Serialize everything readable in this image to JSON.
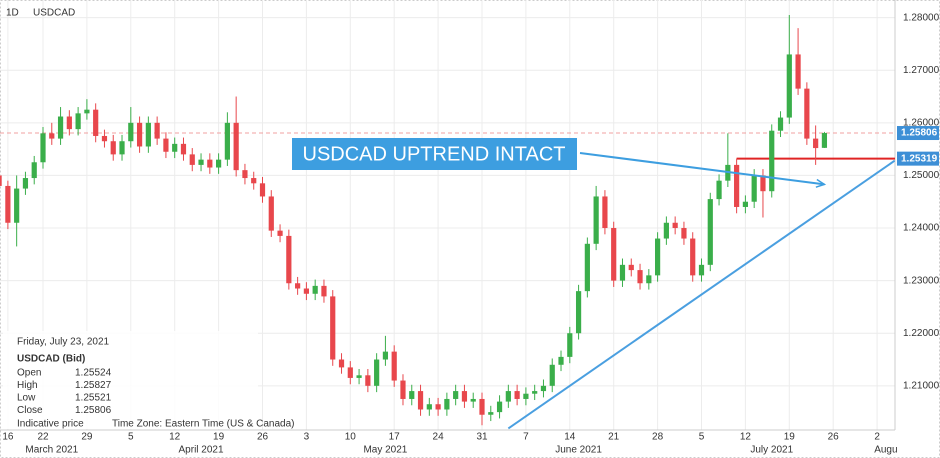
{
  "chart_data": {
    "type": "candlestick",
    "interval": "1D",
    "title": "USDCAD",
    "x": [
      "2021-03-15",
      "2021-03-16",
      "2021-03-17",
      "2021-03-18",
      "2021-03-19",
      "2021-03-22",
      "2021-03-23",
      "2021-03-24",
      "2021-03-25",
      "2021-03-26",
      "2021-03-29",
      "2021-03-30",
      "2021-03-31",
      "2021-04-01",
      "2021-04-02",
      "2021-04-05",
      "2021-04-06",
      "2021-04-07",
      "2021-04-08",
      "2021-04-09",
      "2021-04-12",
      "2021-04-13",
      "2021-04-14",
      "2021-04-15",
      "2021-04-16",
      "2021-04-19",
      "2021-04-20",
      "2021-04-21",
      "2021-04-22",
      "2021-04-23",
      "2021-04-26",
      "2021-04-27",
      "2021-04-28",
      "2021-04-29",
      "2021-04-30",
      "2021-05-03",
      "2021-05-04",
      "2021-05-05",
      "2021-05-06",
      "2021-05-07",
      "2021-05-10",
      "2021-05-11",
      "2021-05-12",
      "2021-05-13",
      "2021-05-14",
      "2021-05-17",
      "2021-05-18",
      "2021-05-19",
      "2021-05-20",
      "2021-05-21",
      "2021-05-24",
      "2021-05-25",
      "2021-05-26",
      "2021-05-27",
      "2021-05-28",
      "2021-05-31",
      "2021-06-01",
      "2021-06-02",
      "2021-06-03",
      "2021-06-04",
      "2021-06-07",
      "2021-06-08",
      "2021-06-09",
      "2021-06-10",
      "2021-06-11",
      "2021-06-14",
      "2021-06-15",
      "2021-06-16",
      "2021-06-17",
      "2021-06-18",
      "2021-06-21",
      "2021-06-22",
      "2021-06-23",
      "2021-06-24",
      "2021-06-25",
      "2021-06-28",
      "2021-06-29",
      "2021-06-30",
      "2021-07-01",
      "2021-07-02",
      "2021-07-05",
      "2021-07-06",
      "2021-07-07",
      "2021-07-08",
      "2021-07-09",
      "2021-07-12",
      "2021-07-13",
      "2021-07-14",
      "2021-07-15",
      "2021-07-16",
      "2021-07-19",
      "2021-07-20",
      "2021-07-21",
      "2021-07-22",
      "2021-07-23"
    ],
    "open": [
      1.25,
      1.248,
      1.241,
      1.2475,
      1.2495,
      1.2525,
      1.258,
      1.257,
      1.2612,
      1.2588,
      1.2618,
      1.2625,
      1.2575,
      1.2565,
      1.254,
      1.2565,
      1.26,
      1.2555,
      1.26,
      1.257,
      1.2545,
      1.256,
      1.254,
      1.252,
      1.253,
      1.2515,
      1.253,
      1.26,
      1.251,
      1.2495,
      1.2485,
      1.246,
      1.2395,
      1.2385,
      1.2295,
      1.2285,
      1.2275,
      1.229,
      1.227,
      1.215,
      1.2135,
      1.2115,
      1.212,
      1.21,
      1.215,
      1.2165,
      1.211,
      1.2075,
      1.209,
      1.2055,
      1.2065,
      1.2055,
      1.2075,
      1.209,
      1.207,
      1.2075,
      1.2045,
      1.205,
      1.207,
      1.209,
      1.2075,
      1.2085,
      1.209,
      1.21,
      1.214,
      1.2155,
      1.22,
      1.228,
      1.237,
      1.246,
      1.24,
      1.23,
      1.233,
      1.232,
      1.2295,
      1.231,
      1.238,
      1.241,
      1.24,
      1.238,
      1.231,
      1.233,
      1.2455,
      1.249,
      1.252,
      1.244,
      1.245,
      1.25,
      1.247,
      1.2585,
      1.261,
      1.273,
      1.2665,
      1.257,
      1.25524
    ],
    "high": [
      1.2512,
      1.249,
      1.25,
      1.2507,
      1.2537,
      1.2592,
      1.26,
      1.263,
      1.2624,
      1.263,
      1.2645,
      1.2637,
      1.2587,
      1.2577,
      1.2577,
      1.263,
      1.2612,
      1.2612,
      1.2612,
      1.2582,
      1.2572,
      1.2572,
      1.2552,
      1.2542,
      1.2542,
      1.2542,
      1.262,
      1.265,
      1.2522,
      1.2507,
      1.2497,
      1.2472,
      1.2407,
      1.2397,
      1.2307,
      1.2297,
      1.2302,
      1.2302,
      1.2282,
      1.2162,
      1.2147,
      1.2132,
      1.2132,
      1.2162,
      1.2195,
      1.2177,
      1.2122,
      1.2102,
      1.2102,
      1.2077,
      1.2077,
      1.2087,
      1.2102,
      1.2102,
      1.2087,
      1.2087,
      1.2062,
      1.2082,
      1.2102,
      1.2102,
      1.2097,
      1.2102,
      1.2112,
      1.2152,
      1.2167,
      1.2212,
      1.2292,
      1.2382,
      1.248,
      1.2472,
      1.2412,
      1.2342,
      1.2342,
      1.2332,
      1.2322,
      1.2392,
      1.2422,
      1.2422,
      1.2412,
      1.2392,
      1.2342,
      1.2467,
      1.2502,
      1.258,
      1.2532,
      1.2462,
      1.2512,
      1.2512,
      1.2597,
      1.2622,
      1.2805,
      1.278,
      1.2677,
      1.2595,
      1.25827
    ],
    "low": [
      1.2468,
      1.2398,
      1.2365,
      1.2463,
      1.2483,
      1.2513,
      1.2558,
      1.2558,
      1.2576,
      1.2576,
      1.2606,
      1.2563,
      1.2553,
      1.2528,
      1.2528,
      1.2553,
      1.2543,
      1.2543,
      1.2558,
      1.2533,
      1.2533,
      1.2528,
      1.2508,
      1.2508,
      1.2503,
      1.2503,
      1.2518,
      1.2498,
      1.2483,
      1.2473,
      1.2448,
      1.2383,
      1.2373,
      1.2283,
      1.2273,
      1.2263,
      1.2263,
      1.2258,
      1.2138,
      1.2123,
      1.2103,
      1.2103,
      1.2088,
      1.2088,
      1.2138,
      1.2098,
      1.2063,
      1.2063,
      1.2043,
      1.2043,
      1.2043,
      1.2043,
      1.2063,
      1.2058,
      1.2058,
      1.2025,
      1.2033,
      1.2038,
      1.2058,
      1.2063,
      1.2063,
      1.2073,
      1.2078,
      1.2088,
      1.2128,
      1.2143,
      1.2188,
      1.2268,
      1.2358,
      1.2388,
      1.2288,
      1.2288,
      1.2308,
      1.2283,
      1.2283,
      1.2298,
      1.2368,
      1.2388,
      1.2368,
      1.2298,
      1.2298,
      1.2318,
      1.2443,
      1.2478,
      1.2428,
      1.2428,
      1.2438,
      1.242,
      1.2458,
      1.2573,
      1.2598,
      1.2653,
      1.2558,
      1.252,
      1.25521
    ],
    "close": [
      1.248,
      1.241,
      1.2475,
      1.2495,
      1.2525,
      1.258,
      1.257,
      1.2612,
      1.2588,
      1.2618,
      1.2625,
      1.2575,
      1.2565,
      1.254,
      1.2565,
      1.26,
      1.2555,
      1.26,
      1.257,
      1.2545,
      1.256,
      1.254,
      1.252,
      1.253,
      1.2515,
      1.253,
      1.26,
      1.251,
      1.2495,
      1.2485,
      1.246,
      1.2395,
      1.2385,
      1.2295,
      1.2285,
      1.2275,
      1.229,
      1.227,
      1.215,
      1.2135,
      1.2115,
      1.212,
      1.21,
      1.215,
      1.2165,
      1.211,
      1.2075,
      1.209,
      1.2055,
      1.2065,
      1.2055,
      1.2075,
      1.209,
      1.207,
      1.2075,
      1.2045,
      1.205,
      1.207,
      1.209,
      1.2075,
      1.2085,
      1.209,
      1.21,
      1.214,
      1.2155,
      1.22,
      1.228,
      1.237,
      1.246,
      1.24,
      1.23,
      1.233,
      1.232,
      1.2295,
      1.231,
      1.238,
      1.241,
      1.24,
      1.238,
      1.231,
      1.233,
      1.2455,
      1.249,
      1.252,
      1.244,
      1.245,
      1.25,
      1.247,
      1.2585,
      1.261,
      1.273,
      1.2665,
      1.257,
      1.2552,
      1.25806
    ],
    "up_color": "#3aae4a",
    "down_color": "#e8474c",
    "ylim": [
      1.2016,
      1.28335
    ],
    "yticks": [
      {
        "value": 1.21,
        "label": "1.21000"
      },
      {
        "value": 1.22,
        "label": "1.22000"
      },
      {
        "value": 1.23,
        "label": "1.23000"
      },
      {
        "value": 1.24,
        "label": "1.24000"
      },
      {
        "value": 1.25,
        "label": "1.25000"
      },
      {
        "value": 1.26,
        "label": "1.26000"
      },
      {
        "value": 1.27,
        "label": "1.27000"
      },
      {
        "value": 1.28,
        "label": "1.28000"
      }
    ],
    "xticks": [
      {
        "value": "2021-03-16",
        "label": "16"
      },
      {
        "value": "2021-03-22",
        "label": "22"
      },
      {
        "value": "2021-03-29",
        "label": "29"
      },
      {
        "value": "2021-04-05",
        "label": "5"
      },
      {
        "value": "2021-04-12",
        "label": "12"
      },
      {
        "value": "2021-04-19",
        "label": "19"
      },
      {
        "value": "2021-04-26",
        "label": "26"
      },
      {
        "value": "2021-05-03",
        "label": "3"
      },
      {
        "value": "2021-05-10",
        "label": "10"
      },
      {
        "value": "2021-05-17",
        "label": "17"
      },
      {
        "value": "2021-05-24",
        "label": "24"
      },
      {
        "value": "2021-05-31",
        "label": "31"
      },
      {
        "value": "2021-06-07",
        "label": "7"
      },
      {
        "value": "2021-06-14",
        "label": "14"
      },
      {
        "value": "2021-06-21",
        "label": "21"
      },
      {
        "value": "2021-06-28",
        "label": "28"
      },
      {
        "value": "2021-07-05",
        "label": "5"
      },
      {
        "value": "2021-07-12",
        "label": "12"
      },
      {
        "value": "2021-07-19",
        "label": "19"
      },
      {
        "value": "2021-07-26",
        "label": "26"
      },
      {
        "value": "2021-08-02",
        "label": "2"
      }
    ],
    "month_labels": [
      {
        "value": "2021-03-23",
        "label": "March 2021"
      },
      {
        "value": "2021-04-15",
        "label": "April 2021"
      },
      {
        "value": "2021-05-14",
        "label": "May 2021"
      },
      {
        "value": "2021-06-15",
        "label": "June 2021"
      },
      {
        "value": "2021-07-15",
        "label": "July 2021"
      },
      {
        "value": "2021-08-03",
        "label": "Augu"
      }
    ],
    "grid": true,
    "price_lines": [
      {
        "value": 1.25806,
        "label": "1.25806",
        "color": "#f0a0a0",
        "dashed": true
      },
      {
        "value": 1.25319,
        "label": "1.25319",
        "color": "#e02424",
        "start": "2021-07-09"
      }
    ],
    "trendline": {
      "from": [
        "2021-06-03",
        1.2019
      ],
      "to": [
        "2021-08-04",
        1.2528
      ],
      "color": "#4a9fe0"
    },
    "annotation": {
      "text": "USDCAD UPTREND INTACT",
      "arrow_to": [
        "2021-07-23",
        1.2483
      ],
      "color": "#3d9ee0"
    },
    "info": {
      "date": "Friday, July 23, 2021",
      "symbol": "USDCAD (Bid)",
      "rows": [
        [
          "Open",
          "1.25524"
        ],
        [
          "High",
          "1.25827"
        ],
        [
          "Low",
          "1.25521"
        ],
        [
          "Close",
          "1.25806"
        ]
      ],
      "footer": [
        "Indicative price",
        "Time Zone: Eastern Time (US & Canada)"
      ]
    }
  }
}
